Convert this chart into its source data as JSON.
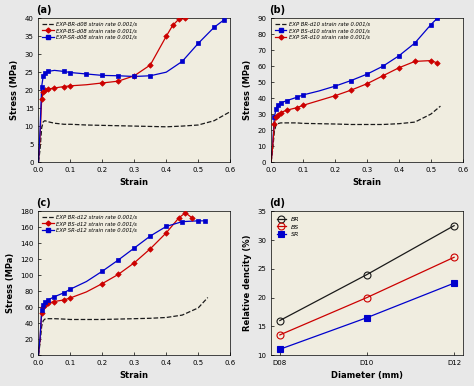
{
  "panel_a": {
    "title": "(a)",
    "xlabel": "Strain",
    "ylabel": "Stress (MPa)",
    "xlim": [
      0,
      0.6
    ],
    "ylim": [
      0,
      40
    ],
    "yticks": [
      0,
      5,
      10,
      15,
      20,
      25,
      30,
      35,
      40
    ],
    "xticks": [
      0.0,
      0.1,
      0.2,
      0.3,
      0.4,
      0.5,
      0.6
    ],
    "curves": [
      {
        "label": "EXP-BR-d08 strain rate 0.001/s",
        "color": "#1a1a1a",
        "linestyle": "--",
        "marker": null,
        "x": [
          0.0,
          0.005,
          0.01,
          0.015,
          0.02,
          0.03,
          0.05,
          0.08,
          0.1,
          0.15,
          0.2,
          0.25,
          0.3,
          0.35,
          0.4,
          0.45,
          0.5,
          0.55,
          0.6
        ],
        "y": [
          0.0,
          3.5,
          9.5,
          11.2,
          11.5,
          11.2,
          10.8,
          10.5,
          10.5,
          10.3,
          10.2,
          10.1,
          10.0,
          9.9,
          9.8,
          10.0,
          10.3,
          11.5,
          14.0
        ]
      },
      {
        "label": "EXP-BS-d08 strain rate 0.001/s",
        "color": "#cc0000",
        "linestyle": "-",
        "marker": "D",
        "x": [
          0.0,
          0.005,
          0.01,
          0.015,
          0.02,
          0.03,
          0.05,
          0.08,
          0.1,
          0.15,
          0.2,
          0.25,
          0.3,
          0.35,
          0.4,
          0.42,
          0.44,
          0.46
        ],
        "y": [
          0.0,
          7.0,
          17.5,
          19.5,
          20.0,
          20.3,
          20.6,
          21.0,
          21.2,
          21.5,
          22.0,
          22.5,
          24.0,
          27.0,
          35.0,
          38.0,
          39.8,
          40.0
        ]
      },
      {
        "label": "EXP-SR-d08 strain rate 0.001/s",
        "color": "#0000cc",
        "linestyle": "-",
        "marker": "s",
        "x": [
          0.0,
          0.005,
          0.01,
          0.015,
          0.02,
          0.03,
          0.05,
          0.08,
          0.1,
          0.15,
          0.2,
          0.25,
          0.3,
          0.35,
          0.4,
          0.45,
          0.5,
          0.55,
          0.58
        ],
        "y": [
          0.0,
          9.0,
          21.0,
          24.0,
          24.8,
          25.2,
          25.5,
          25.2,
          24.9,
          24.5,
          24.1,
          24.0,
          23.8,
          24.0,
          25.0,
          28.0,
          33.0,
          37.5,
          39.5
        ]
      }
    ]
  },
  "panel_b": {
    "title": "(b)",
    "xlabel": "Strain",
    "ylabel": "Stress (MPa)",
    "xlim": [
      0,
      0.6
    ],
    "ylim": [
      0,
      90
    ],
    "yticks": [
      0,
      10,
      20,
      30,
      40,
      50,
      60,
      70,
      80,
      90
    ],
    "xticks": [
      0.0,
      0.1,
      0.2,
      0.3,
      0.4,
      0.5,
      0.6
    ],
    "curves": [
      {
        "label": "EXP BR-d10 strain rate 0.001/s",
        "color": "#1a1a1a",
        "linestyle": "--",
        "marker": null,
        "x": [
          0.0,
          0.005,
          0.01,
          0.015,
          0.02,
          0.03,
          0.05,
          0.08,
          0.1,
          0.15,
          0.2,
          0.25,
          0.3,
          0.35,
          0.4,
          0.45,
          0.5,
          0.53
        ],
        "y": [
          0.0,
          8.0,
          19.0,
          23.0,
          24.0,
          24.5,
          24.5,
          24.5,
          24.2,
          24.0,
          23.8,
          23.5,
          23.5,
          23.5,
          24.0,
          25.0,
          30.0,
          35.0
        ]
      },
      {
        "label": "EXP BS-d10 strain rate 0.001/s",
        "color": "#0000cc",
        "linestyle": "-",
        "marker": "s",
        "x": [
          0.0,
          0.005,
          0.01,
          0.015,
          0.02,
          0.03,
          0.05,
          0.08,
          0.1,
          0.15,
          0.2,
          0.25,
          0.3,
          0.35,
          0.4,
          0.45,
          0.5,
          0.52
        ],
        "y": [
          0.0,
          12.0,
          28.0,
          33.0,
          35.5,
          37.0,
          38.5,
          40.5,
          42.0,
          44.5,
          47.5,
          51.0,
          55.0,
          60.0,
          66.5,
          74.5,
          86.0,
          90.0
        ]
      },
      {
        "label": "EXP SR-d10 strain rate 0.001/s",
        "color": "#cc0000",
        "linestyle": "-",
        "marker": "D",
        "x": [
          0.0,
          0.005,
          0.01,
          0.015,
          0.02,
          0.03,
          0.05,
          0.08,
          0.1,
          0.15,
          0.2,
          0.25,
          0.3,
          0.35,
          0.4,
          0.45,
          0.5,
          0.52
        ],
        "y": [
          0.0,
          10.0,
          24.0,
          28.0,
          29.5,
          31.0,
          32.5,
          34.0,
          35.5,
          38.5,
          41.5,
          45.0,
          49.0,
          54.0,
          59.0,
          63.0,
          63.5,
          62.0
        ]
      }
    ]
  },
  "panel_c": {
    "title": "(c)",
    "xlabel": "Strain",
    "ylabel": "Stress (MPa)",
    "xlim": [
      0,
      0.6
    ],
    "ylim": [
      0,
      180
    ],
    "yticks": [
      0,
      20,
      40,
      60,
      80,
      100,
      120,
      140,
      160,
      180
    ],
    "xticks": [
      0.0,
      0.1,
      0.2,
      0.3,
      0.4,
      0.5,
      0.6
    ],
    "curves": [
      {
        "label": "EXP BR-d12 strain rate 0.001/s",
        "color": "#1a1a1a",
        "linestyle": "--",
        "marker": null,
        "x": [
          0.0,
          0.005,
          0.01,
          0.015,
          0.02,
          0.03,
          0.05,
          0.08,
          0.1,
          0.15,
          0.2,
          0.25,
          0.3,
          0.35,
          0.4,
          0.45,
          0.5,
          0.53
        ],
        "y": [
          0.0,
          15.0,
          36.0,
          43.0,
          45.0,
          45.5,
          45.5,
          45.0,
          44.5,
          44.5,
          44.5,
          45.0,
          45.5,
          46.0,
          47.0,
          50.0,
          59.0,
          72.0
        ]
      },
      {
        "label": "EXP BS-d12 strain rate 0.001/s",
        "color": "#cc0000",
        "linestyle": "-",
        "marker": "D",
        "x": [
          0.0,
          0.005,
          0.01,
          0.015,
          0.02,
          0.03,
          0.05,
          0.08,
          0.1,
          0.15,
          0.2,
          0.25,
          0.3,
          0.35,
          0.4,
          0.44,
          0.46,
          0.48
        ],
        "y": [
          0.0,
          20.0,
          52.0,
          60.0,
          63.0,
          65.0,
          67.0,
          69.0,
          71.5,
          79.0,
          89.5,
          101.0,
          115.5,
          133.0,
          153.0,
          172.0,
          178.0,
          172.0
        ]
      },
      {
        "label": "EXP SR-d12 strain rate 0.001/s",
        "color": "#0000cc",
        "linestyle": "-",
        "marker": "s",
        "x": [
          0.0,
          0.005,
          0.01,
          0.015,
          0.02,
          0.03,
          0.05,
          0.08,
          0.1,
          0.15,
          0.2,
          0.25,
          0.3,
          0.35,
          0.4,
          0.45,
          0.5,
          0.52
        ],
        "y": [
          0.0,
          22.0,
          56.0,
          63.0,
          66.0,
          69.0,
          73.0,
          78.0,
          82.5,
          92.0,
          105.0,
          119.0,
          134.0,
          149.0,
          161.0,
          167.0,
          168.0,
          168.0
        ]
      }
    ]
  },
  "panel_d": {
    "title": "(d)",
    "xlabel": "Diameter (mm)",
    "ylabel": "Relative dencity (%)",
    "xlim_labels": [
      "D08",
      "D10",
      "D12"
    ],
    "ylim": [
      10,
      35
    ],
    "yticks": [
      10,
      15,
      20,
      25,
      30,
      35
    ],
    "curves": [
      {
        "label": "BR",
        "color": "#1a1a1a",
        "marker": "o",
        "fillstyle": "none",
        "linestyle": "-",
        "y": [
          16.0,
          24.0,
          32.5
        ]
      },
      {
        "label": "BS",
        "color": "#cc0000",
        "marker": "o",
        "fillstyle": "none",
        "linestyle": "-",
        "y": [
          13.5,
          20.0,
          27.0
        ]
      },
      {
        "label": "SR",
        "color": "#0000cc",
        "marker": "s",
        "fillstyle": "full",
        "linestyle": "-",
        "y": [
          11.0,
          16.5,
          22.5
        ]
      }
    ]
  },
  "figure_bg": "#e8e8e8",
  "axes_bg": "#f0ede0"
}
